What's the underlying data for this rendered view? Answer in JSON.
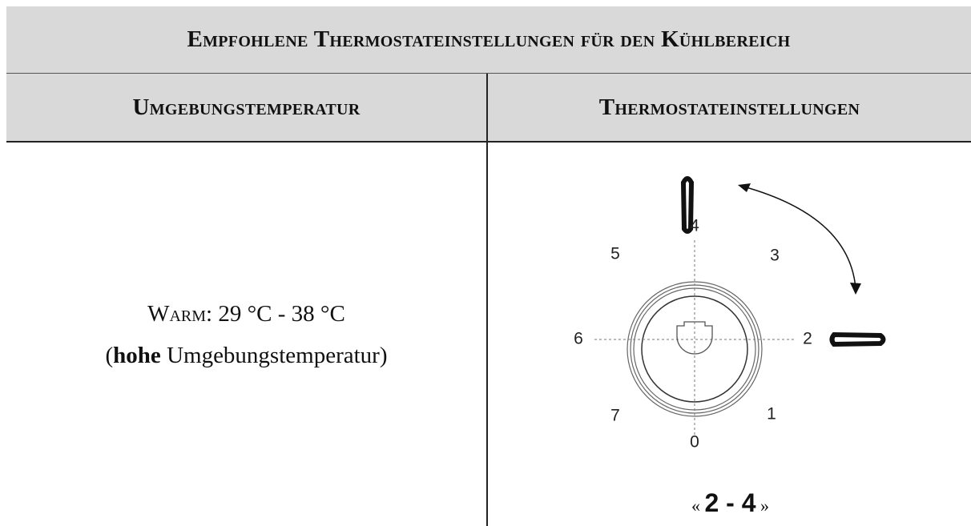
{
  "header": {
    "title": "Empfohlene Thermostateinstellungen für den Kühlbereich"
  },
  "table": {
    "columns": [
      "Umgebungstemperatur",
      "Thermostateinstellungen"
    ],
    "rows": [
      [
        {
          "line1": [
            "Warm",
            ": 29 °C - 38 °C"
          ],
          "line2": [
            "(",
            "hohe",
            " Umgebungstemperatur)"
          ]
        },
        {
          "dial": [
            "0",
            "1",
            "2",
            "3",
            "4",
            "5",
            "6",
            "7"
          ],
          "setting": [
            "«",
            "2 - 4",
            "»"
          ]
        }
      ]
    ]
  }
}
